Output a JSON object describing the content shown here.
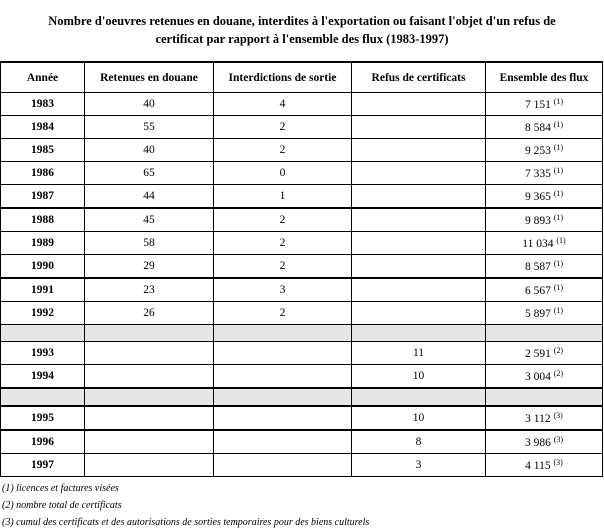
{
  "title_line1": "Nombre d'oeuvres retenues en douane, interdites à l'exportation ou faisant l'objet d'un refus de",
  "title_line2": "certificat par rapport à l'ensemble des flux (1983-1997)",
  "headers": [
    "Année",
    "Retenues en douane",
    "Interdictions de sortie",
    "Refus de certificats",
    "Ensemble des flux"
  ],
  "rows": [
    {
      "year": "1983",
      "ret": "40",
      "int": "4",
      "ref": "",
      "ens": "7 151",
      "note": "(1)"
    },
    {
      "year": "1984",
      "ret": "55",
      "int": "2",
      "ref": "",
      "ens": "8 584",
      "note": "(1)"
    },
    {
      "year": "1985",
      "ret": "40",
      "int": "2",
      "ref": "",
      "ens": "9 253",
      "note": "(1)"
    },
    {
      "year": "1986",
      "ret": "65",
      "int": "0",
      "ref": "",
      "ens": "7 335",
      "note": "(1)"
    },
    {
      "year": "1987",
      "ret": "44",
      "int": "1",
      "ref": "",
      "ens": "9 365",
      "note": "(1)"
    },
    {
      "year": "1988",
      "ret": "45",
      "int": "2",
      "ref": "",
      "ens": "9 893",
      "note": "(1)"
    },
    {
      "year": "1989",
      "ret": "58",
      "int": "2",
      "ref": "",
      "ens": "11 034",
      "note": "(1)"
    },
    {
      "year": "1990",
      "ret": "29",
      "int": "2",
      "ref": "",
      "ens": "8 587",
      "note": "(1)"
    },
    {
      "year": "1991",
      "ret": "23",
      "int": "3",
      "ref": "",
      "ens": "6 567",
      "note": "(1)"
    },
    {
      "year": "1992",
      "ret": "26",
      "int": "2",
      "ref": "",
      "ens": "5 897",
      "note": "(1)"
    },
    {
      "gap": true
    },
    {
      "year": "1993",
      "ret": "",
      "int": "",
      "ref": "11",
      "ens": "2 591",
      "note": "(2)"
    },
    {
      "year": "1994",
      "ret": "",
      "int": "",
      "ref": "10",
      "ens": "3 004",
      "note": "(2)"
    },
    {
      "gap": true
    },
    {
      "year": "1995",
      "ret": "",
      "int": "",
      "ref": "10",
      "ens": "3 112",
      "note": "(3)"
    },
    {
      "year": "1996",
      "ret": "",
      "int": "",
      "ref": "8",
      "ens": "3 986",
      "note": "(3)"
    },
    {
      "year": "1997",
      "ret": "",
      "int": "",
      "ref": "3",
      "ens": "4 115",
      "note": "(3)"
    }
  ],
  "footnotes": [
    "(1) licences et factures visées",
    "(2) nombre total de certificats",
    "(3) cumul des certificats et des autorisations de sorties temporaires pour des biens culturels"
  ]
}
